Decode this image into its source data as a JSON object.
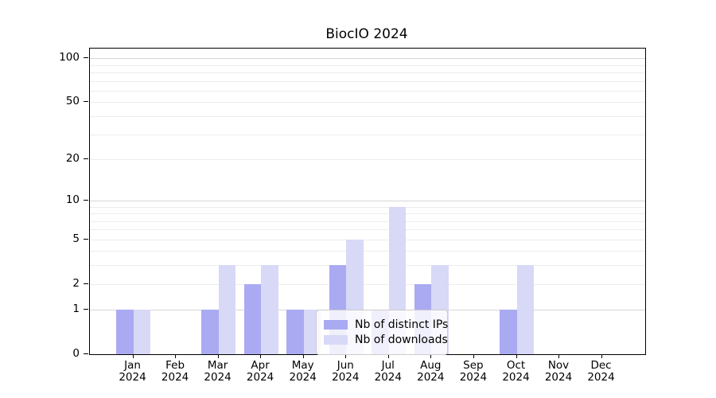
{
  "chart_data": {
    "type": "bar",
    "title": "BiocIO 2024",
    "categories": [
      "Jan",
      "Feb",
      "Mar",
      "Apr",
      "May",
      "Jun",
      "Jul",
      "Aug",
      "Sep",
      "Oct",
      "Nov",
      "Dec"
    ],
    "category_year": "2024",
    "series": [
      {
        "name": "Nb of distinct IPs",
        "color": "#aaaaf2",
        "values": [
          1,
          0,
          1,
          2,
          1,
          3,
          1,
          2,
          0,
          1,
          0,
          0
        ]
      },
      {
        "name": "Nb of downloads",
        "color": "#d8d8f7",
        "values": [
          1,
          0,
          3,
          3,
          1,
          5,
          9,
          3,
          0,
          3,
          0,
          0
        ]
      }
    ],
    "xlabel": "",
    "ylabel": "",
    "yscale": "log1p",
    "y_ticks": [
      0,
      1,
      2,
      5,
      10,
      20,
      50,
      100
    ],
    "y_minor_gridlines": [
      2,
      3,
      4,
      5,
      6,
      7,
      8,
      9,
      20,
      30,
      40,
      50,
      60,
      70,
      80,
      90
    ],
    "y_major_gridlines": [
      1,
      10,
      100
    ],
    "ylim": [
      0,
      117
    ],
    "grid": "horizontal",
    "legend_position": "inside-bottom-center"
  }
}
